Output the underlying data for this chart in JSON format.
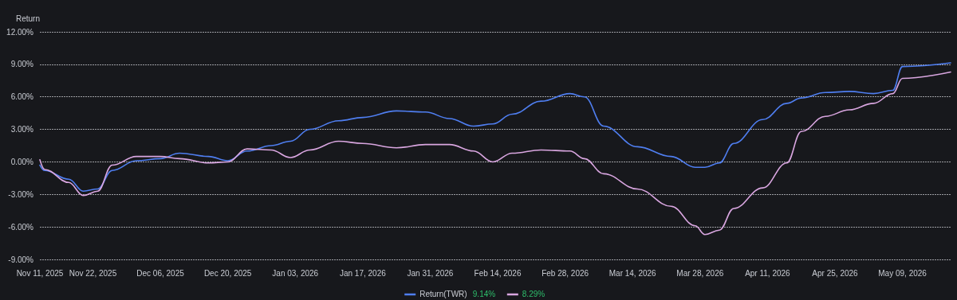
{
  "chart_data": {
    "type": "line",
    "ylabel": "Return",
    "x": [
      "2025-11-11",
      "2025-11-12",
      "2025-11-17",
      "2025-11-20",
      "2025-11-23",
      "2025-11-26",
      "2025-12-01",
      "2025-12-06",
      "2025-12-10",
      "2025-12-16",
      "2025-12-20",
      "2025-12-24",
      "2025-12-29",
      "2026-01-02",
      "2026-01-06",
      "2026-01-12",
      "2026-01-17",
      "2026-01-24",
      "2026-01-30",
      "2026-02-04",
      "2026-02-09",
      "2026-02-13",
      "2026-02-17",
      "2026-02-23",
      "2026-03-01",
      "2026-03-04",
      "2026-03-08",
      "2026-03-15",
      "2026-03-22",
      "2026-03-27",
      "2026-03-29",
      "2026-04-01",
      "2026-04-04",
      "2026-04-10",
      "2026-04-15",
      "2026-04-18",
      "2026-04-23",
      "2026-04-28",
      "2026-05-03",
      "2026-05-07",
      "2026-05-09",
      "2026-05-19"
    ],
    "series": [
      {
        "name": "Return(TWR)",
        "color": "#4f7ef0",
        "values": [
          -0.3,
          -0.8,
          -1.6,
          -2.7,
          -2.5,
          -0.8,
          0.1,
          0.3,
          0.8,
          0.5,
          0.1,
          1.0,
          1.5,
          1.9,
          3.0,
          3.8,
          4.1,
          4.7,
          4.6,
          4.0,
          3.3,
          3.5,
          4.4,
          5.6,
          6.3,
          6.0,
          3.3,
          1.4,
          0.5,
          -0.5,
          -0.5,
          -0.1,
          1.7,
          3.9,
          5.4,
          5.9,
          6.4,
          6.5,
          6.3,
          6.6,
          8.8,
          9.14
        ]
      },
      {
        "color": "#d9a6e0",
        "values": [
          0.2,
          -0.7,
          -1.9,
          -3.1,
          -2.7,
          -0.3,
          0.5,
          0.5,
          0.3,
          -0.1,
          0.0,
          1.2,
          1.1,
          0.4,
          1.1,
          1.9,
          1.7,
          1.3,
          1.6,
          1.6,
          1.0,
          0.0,
          0.8,
          1.1,
          1.0,
          0.3,
          -1.1,
          -2.5,
          -4.1,
          -5.9,
          -6.7,
          -6.3,
          -4.3,
          -2.4,
          -0.1,
          2.8,
          4.2,
          4.8,
          5.4,
          6.3,
          7.7,
          8.29
        ]
      }
    ],
    "xlim": [
      "2025-11-11",
      "2026-05-19"
    ],
    "xticks": [
      {
        "value": "2025-11-11",
        "label": "Nov 11, 2025"
      },
      {
        "value": "2025-11-22",
        "label": "Nov 22, 2025"
      },
      {
        "value": "2025-12-06",
        "label": "Dec 06, 2025"
      },
      {
        "value": "2025-12-20",
        "label": "Dec 20, 2025"
      },
      {
        "value": "2026-01-03",
        "label": "Jan 03, 2026"
      },
      {
        "value": "2026-01-17",
        "label": "Jan 17, 2026"
      },
      {
        "value": "2026-01-31",
        "label": "Jan 31, 2026"
      },
      {
        "value": "2026-02-14",
        "label": "Feb 14, 2026"
      },
      {
        "value": "2026-02-28",
        "label": "Feb 28, 2026"
      },
      {
        "value": "2026-03-14",
        "label": "Mar 14, 2026"
      },
      {
        "value": "2026-03-28",
        "label": "Mar 28, 2026"
      },
      {
        "value": "2026-04-11",
        "label": "Apr 11, 2026"
      },
      {
        "value": "2026-04-25",
        "label": "Apr 25, 2026"
      },
      {
        "value": "2026-05-09",
        "label": "May 09, 2026"
      }
    ],
    "ylim": [
      -9,
      12
    ],
    "yticks": [
      {
        "value": -9,
        "label": "-9.00%"
      },
      {
        "value": -6,
        "label": "-6.00%"
      },
      {
        "value": -3,
        "label": "-3.00%"
      },
      {
        "value": 0,
        "label": "0.00%"
      },
      {
        "value": 3,
        "label": "3.00%"
      },
      {
        "value": 6,
        "label": "6.00%"
      },
      {
        "value": 9,
        "label": "9.00%"
      },
      {
        "value": 12,
        "label": "12.00%"
      }
    ],
    "annotations": [
      "9.14%",
      "8.29%"
    ],
    "grid": "y",
    "legend": "bottom",
    "marker": "none",
    "line_style": "solid"
  }
}
